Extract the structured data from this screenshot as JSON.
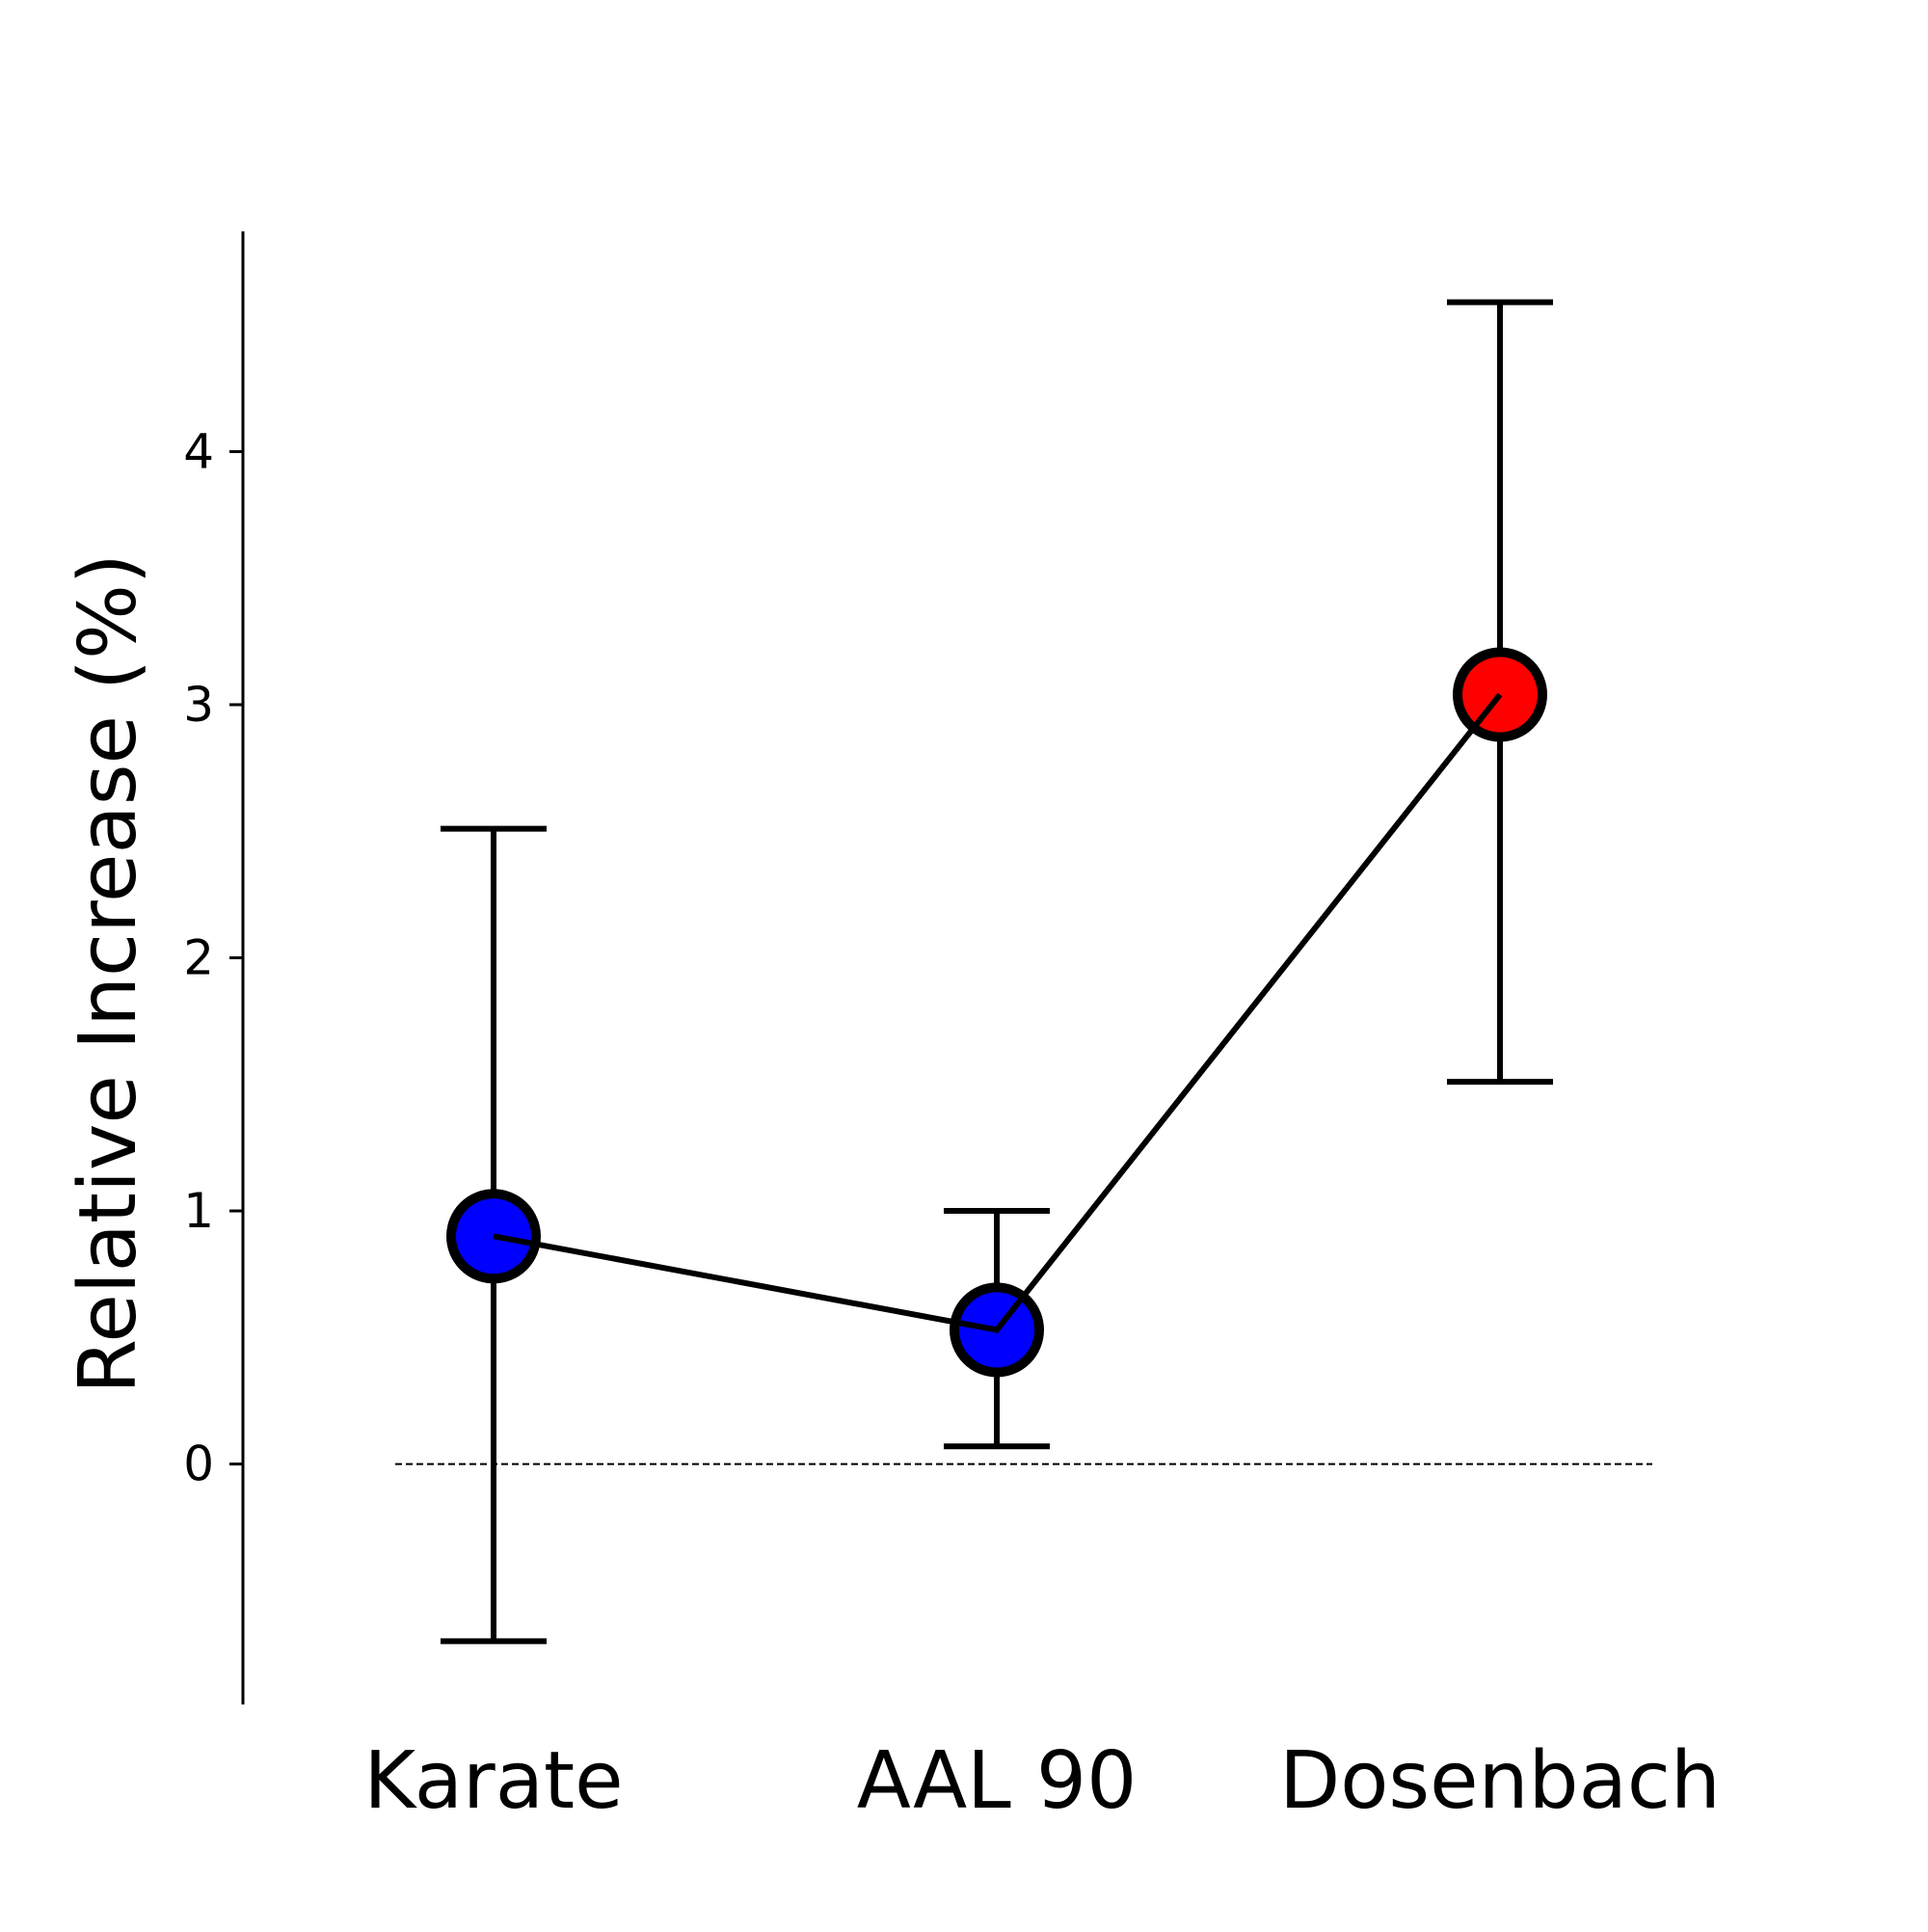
{
  "chart_data": {
    "type": "line",
    "title": "",
    "xlabel": "",
    "ylabel": "Relative Increase (%)",
    "categories": [
      "Karate",
      "AAL 90",
      "Dosenbach"
    ],
    "series": [
      {
        "values": [
          0.9,
          0.53,
          3.04
        ],
        "error_low": [
          -0.7,
          0.07,
          1.51
        ],
        "error_high": [
          2.51,
          1.0,
          4.59
        ],
        "marker_colors": [
          "#0000ff",
          "#0000ff",
          "#ff0000"
        ],
        "marker_edge_color": "#000000",
        "line_color": "#000000"
      }
    ],
    "yticks": [
      0,
      1,
      2,
      3,
      4
    ],
    "ylim": [
      -0.95,
      4.87
    ],
    "reference_line": {
      "y": 0,
      "style": "dashed"
    },
    "grid": false,
    "legend": "none",
    "spines": "left only"
  }
}
